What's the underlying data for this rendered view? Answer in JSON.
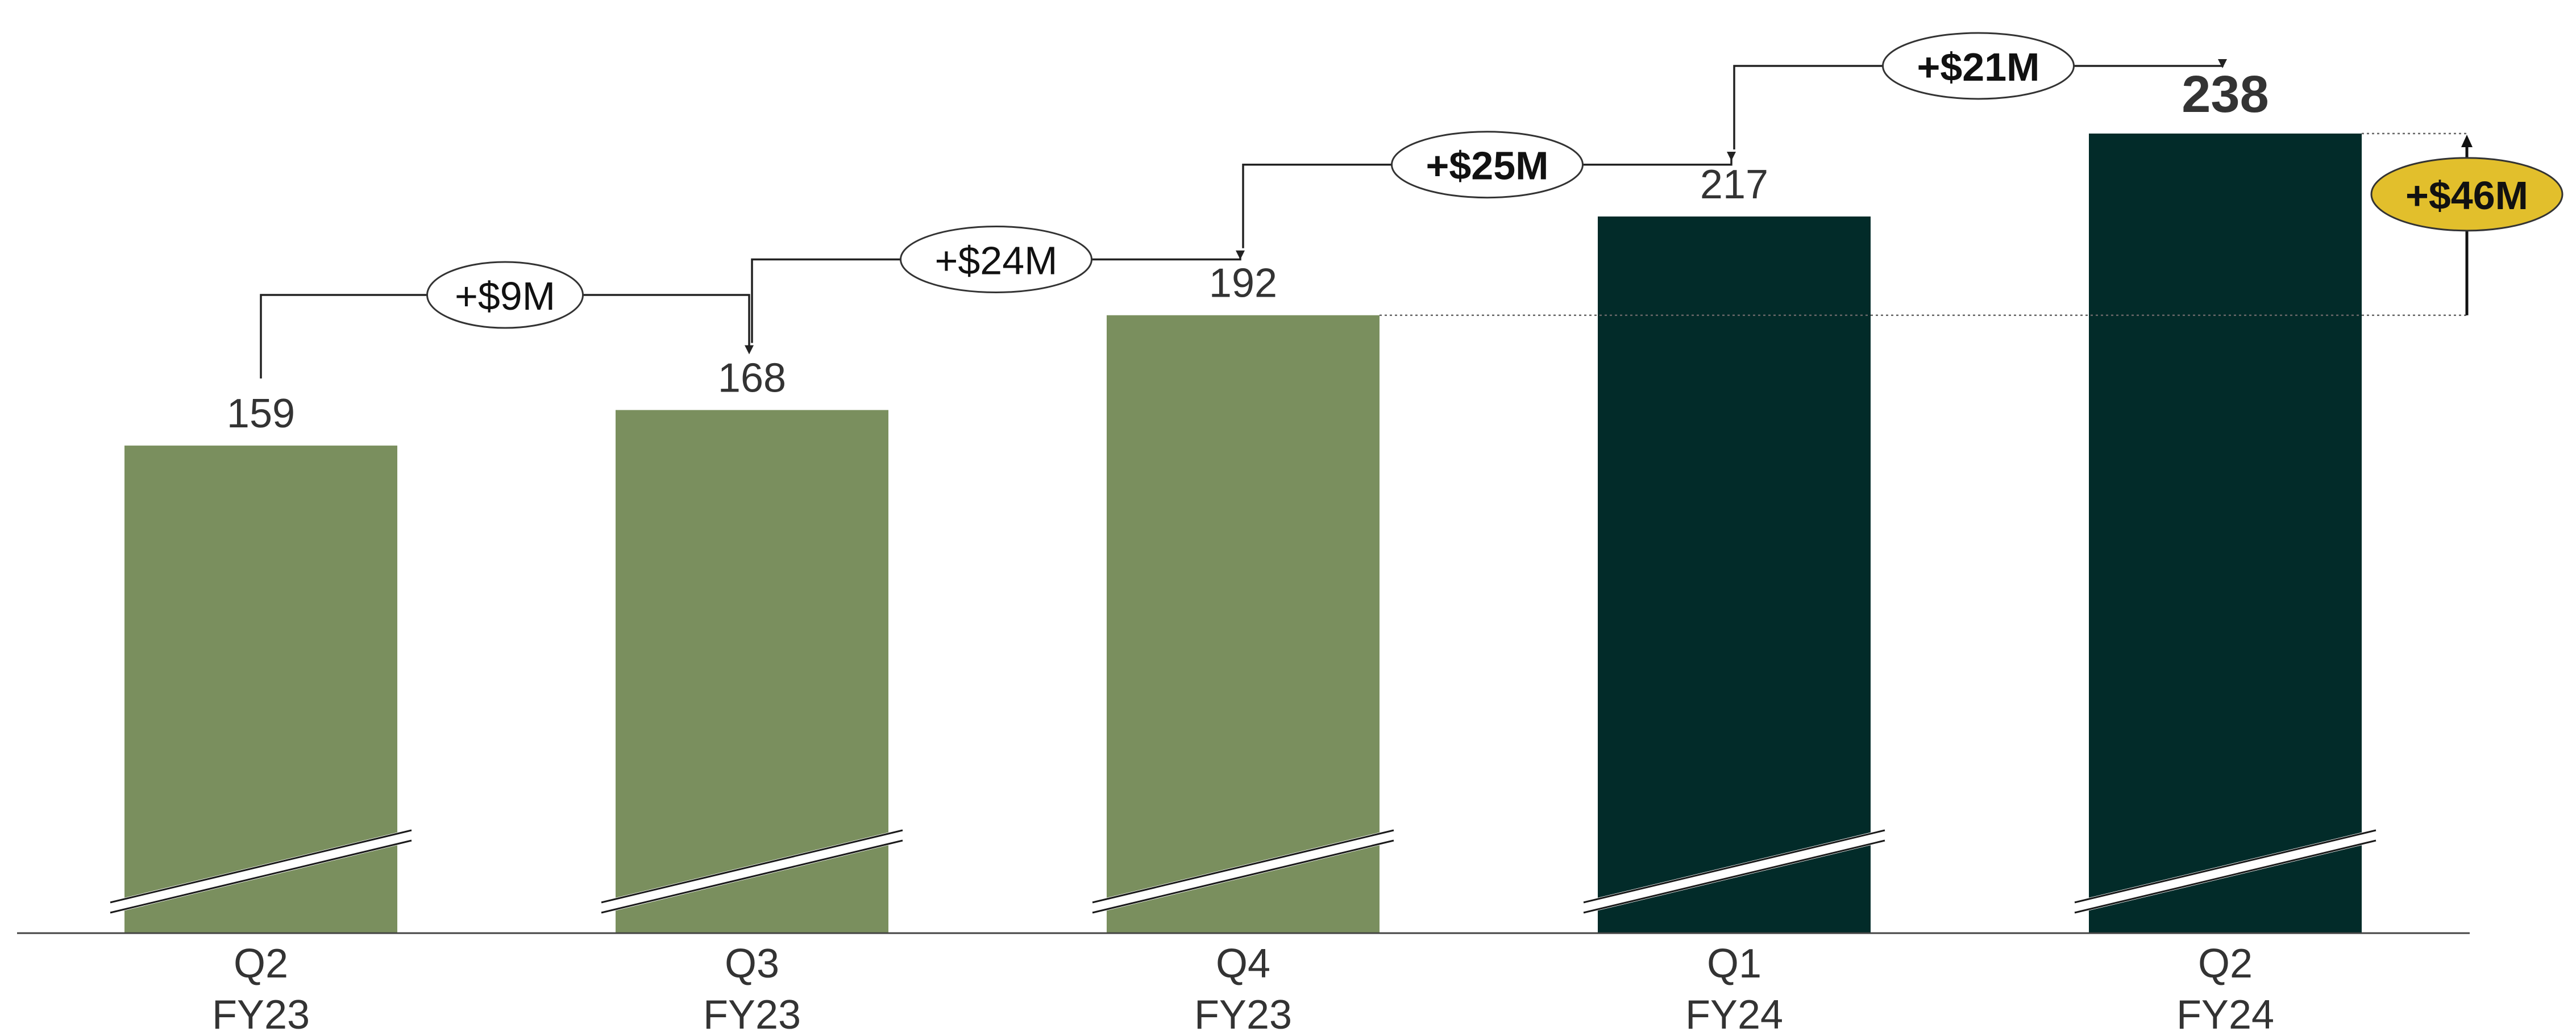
{
  "colors": {
    "fy23_bar": "#7a8f5e",
    "fy24_bar": "#022b29",
    "label_text": "#333333",
    "highlight_badge": "#e2bf2c",
    "axis": "#444444"
  },
  "chart_data": {
    "type": "bar",
    "title": "",
    "xlabel": "",
    "ylabel": "",
    "axis_break": true,
    "categories": [
      [
        "Q2",
        "FY23"
      ],
      [
        "Q3",
        "FY23"
      ],
      [
        "Q4",
        "FY23"
      ],
      [
        "Q1",
        "FY24"
      ],
      [
        "Q2",
        "FY24"
      ]
    ],
    "values": [
      159,
      168,
      192,
      217,
      238
    ],
    "value_labels": [
      "159",
      "168",
      "192",
      "217",
      "238"
    ],
    "bar_color_groups": [
      "fy23",
      "fy23",
      "fy23",
      "fy24",
      "fy24"
    ],
    "ylim": [
      135,
      241
    ],
    "step_annotations": [
      {
        "from": 0,
        "to": 1,
        "label": "+$9M",
        "bold": false
      },
      {
        "from": 1,
        "to": 2,
        "label": "+$24M",
        "bold": false
      },
      {
        "from": 2,
        "to": 3,
        "label": "+$25M",
        "bold": true
      },
      {
        "from": 3,
        "to": 4,
        "label": "+$21M",
        "bold": true
      }
    ],
    "highlight_annotation": {
      "from": 2,
      "to": 4,
      "label": "+$46M"
    }
  }
}
